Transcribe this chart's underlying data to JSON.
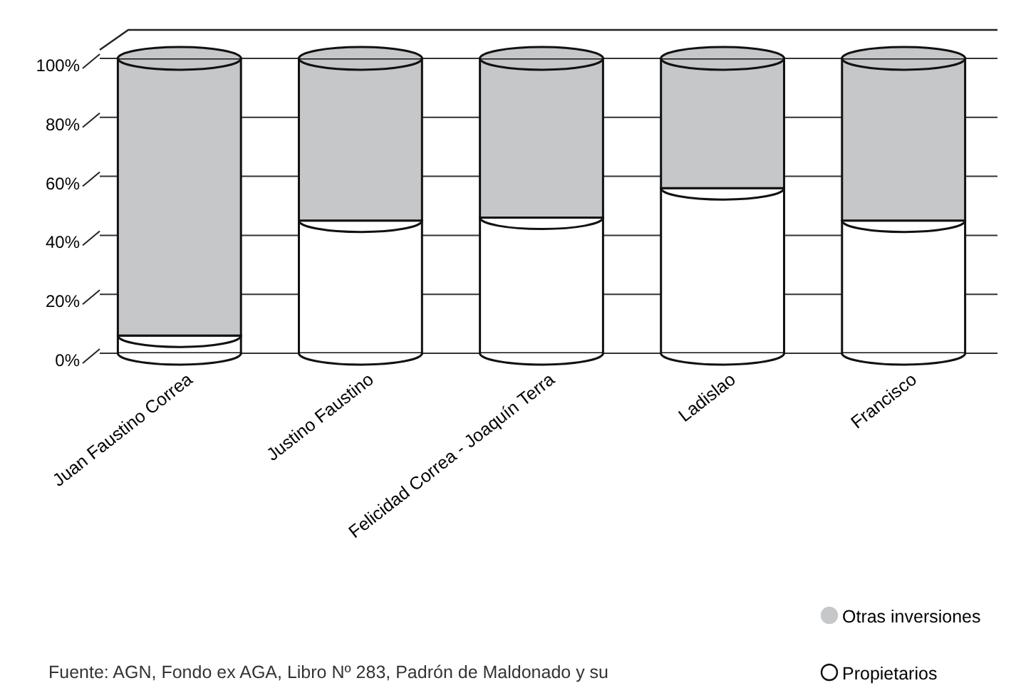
{
  "chart_data": {
    "type": "bar",
    "stacked": true,
    "categories": [
      "Juan Faustino Correa",
      "Justino Faustino",
      "Felicidad Correa - Joaquín Terra",
      "Ladislao",
      "Francisco"
    ],
    "series": [
      {
        "name": "Propietarios",
        "color": "#ffffff",
        "values": [
          6,
          45,
          46,
          56,
          45
        ]
      },
      {
        "name": "Otras inversiones",
        "color": "#c6c7c9",
        "values": [
          94,
          55,
          54,
          44,
          55
        ]
      }
    ],
    "ylim": [
      0,
      100
    ],
    "yticks": [
      {
        "value": 0,
        "label": "0%"
      },
      {
        "value": 20,
        "label": "20%"
      },
      {
        "value": 40,
        "label": "40%"
      },
      {
        "value": 60,
        "label": "60%"
      },
      {
        "value": 80,
        "label": "80%"
      },
      {
        "value": 100,
        "label": "100%"
      }
    ],
    "grid": "y",
    "legend": "bottom right",
    "annotations": [
      "Fuente: AGN, Fondo ex AGA, Libro Nº 283, Padrón de Maldonado y su"
    ]
  }
}
